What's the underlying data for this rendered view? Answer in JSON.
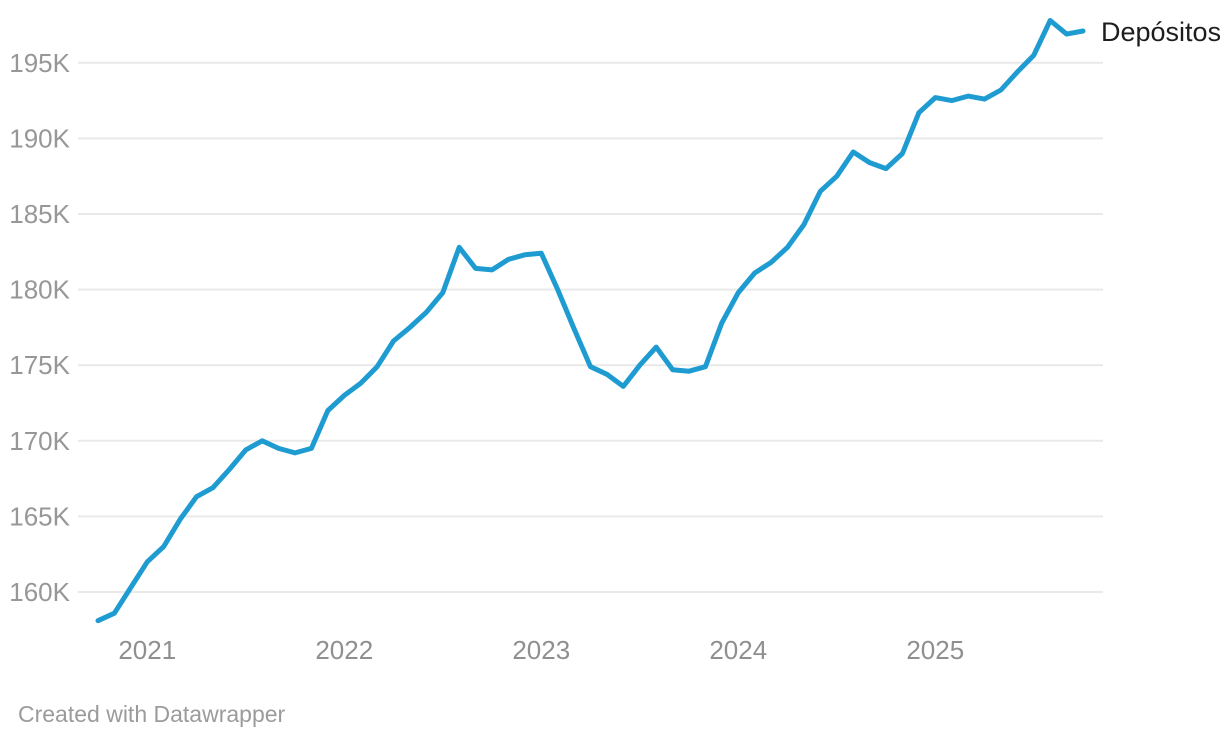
{
  "legend": {
    "series_label": "Depósitos"
  },
  "footer": {
    "attribution": "Created with Datawrapper"
  },
  "colors": {
    "line": "#1E9CD2",
    "gridline": "#E9E9E9",
    "y_tick_text": "#979797",
    "x_tick_text": "#8F8F8F",
    "legend_text": "#1D1D1D",
    "attribution_text": "#9B9B9B",
    "background": "#FFFFFF"
  },
  "chart_data": {
    "type": "line",
    "title": "",
    "xlabel": "",
    "ylabel": "",
    "unit": "K",
    "grid": "horizontal",
    "legend_position": "end-of-line-right",
    "ylim": [
      157.5,
      198.6
    ],
    "y_ticks": [
      160,
      165,
      170,
      175,
      180,
      185,
      190,
      195
    ],
    "y_tick_labels": [
      "160K",
      "165K",
      "170K",
      "175K",
      "180K",
      "185K",
      "190K",
      "195K"
    ],
    "x_tick_labels": [
      "2021",
      "2022",
      "2023",
      "2024",
      "2025"
    ],
    "x": [
      "2020-10",
      "2020-11",
      "2020-12",
      "2021-01",
      "2021-02",
      "2021-03",
      "2021-04",
      "2021-05",
      "2021-06",
      "2021-07",
      "2021-08",
      "2021-09",
      "2021-10",
      "2021-11",
      "2021-12",
      "2022-01",
      "2022-02",
      "2022-03",
      "2022-04",
      "2022-05",
      "2022-06",
      "2022-07",
      "2022-08",
      "2022-09",
      "2022-10",
      "2022-11",
      "2022-12",
      "2023-01",
      "2023-02",
      "2023-03",
      "2023-04",
      "2023-05",
      "2023-06",
      "2023-07",
      "2023-08",
      "2023-09",
      "2023-10",
      "2023-11",
      "2023-12",
      "2024-01",
      "2024-02",
      "2024-03",
      "2024-04",
      "2024-05",
      "2024-06",
      "2024-07",
      "2024-08",
      "2024-09",
      "2024-10",
      "2024-11",
      "2024-12",
      "2025-01",
      "2025-02",
      "2025-03",
      "2025-04",
      "2025-05",
      "2025-06",
      "2025-07",
      "2025-08",
      "2025-09",
      "2025-10"
    ],
    "series": [
      {
        "name": "Depósitos",
        "values": [
          158.1,
          158.6,
          160.3,
          162.0,
          163.0,
          164.8,
          166.3,
          166.9,
          168.1,
          169.4,
          170.0,
          169.5,
          169.2,
          169.5,
          172.0,
          173.0,
          173.8,
          174.9,
          176.6,
          177.5,
          178.5,
          179.8,
          182.8,
          181.4,
          181.3,
          182.0,
          182.3,
          182.4,
          180.0,
          177.4,
          174.9,
          174.4,
          173.6,
          175.0,
          176.2,
          174.7,
          174.6,
          174.9,
          177.8,
          179.8,
          181.1,
          181.8,
          182.8,
          184.3,
          186.5,
          187.5,
          189.1,
          188.4,
          188.0,
          189.0,
          191.7,
          192.7,
          192.5,
          192.8,
          192.6,
          193.2,
          194.4,
          195.5,
          197.8,
          196.9,
          197.1
        ]
      }
    ]
  }
}
